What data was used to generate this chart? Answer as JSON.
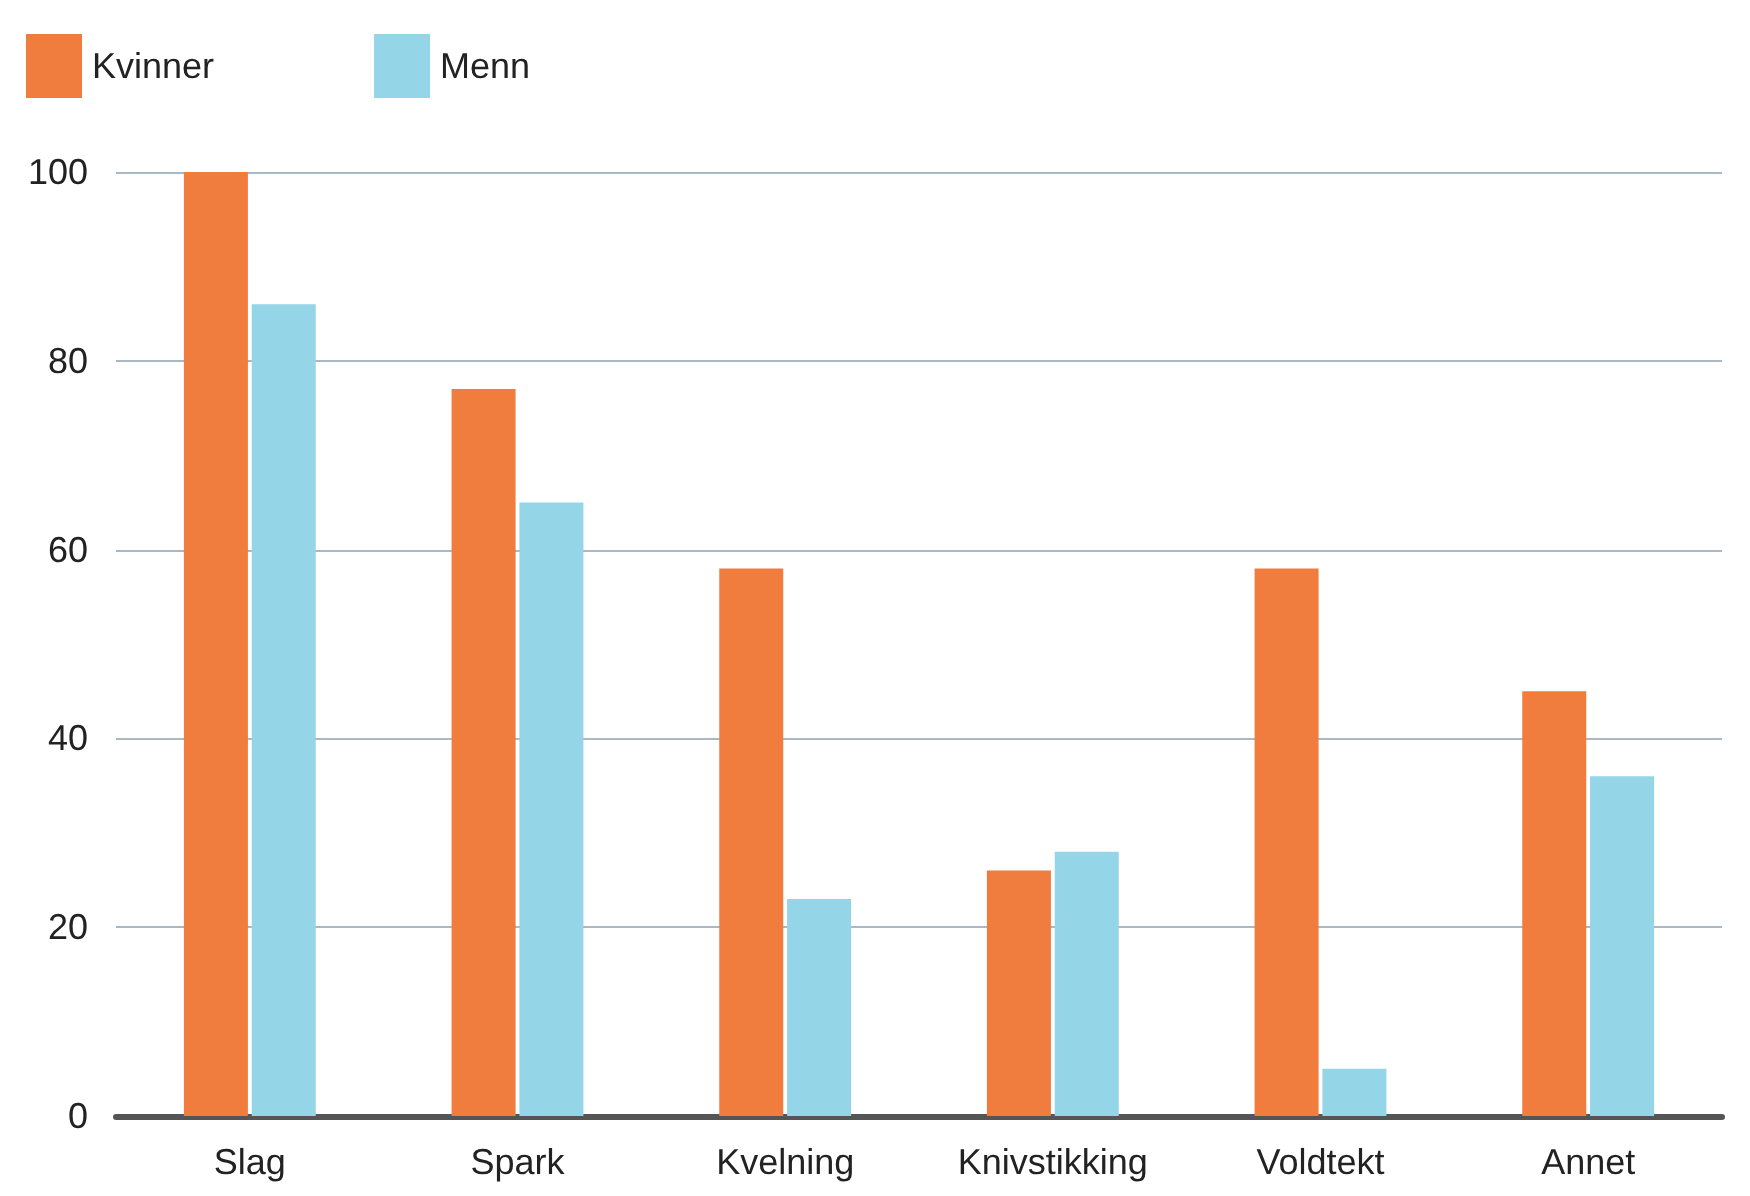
{
  "chart_data": {
    "type": "bar",
    "categories": [
      "Slag",
      "Spark",
      "Kvelning",
      "Knivstikking",
      "Voldtekt",
      "Annet"
    ],
    "series": [
      {
        "name": "Kvinner",
        "color": "#f07c3e",
        "values": [
          100,
          77,
          58,
          26,
          58,
          45
        ]
      },
      {
        "name": "Menn",
        "color": "#94d5e8",
        "values": [
          86,
          65,
          23,
          28,
          5,
          36
        ]
      }
    ],
    "ylim": [
      0,
      100
    ],
    "yticks": [
      0,
      20,
      40,
      60,
      80,
      100
    ],
    "grid": "y",
    "legend": "top left"
  }
}
